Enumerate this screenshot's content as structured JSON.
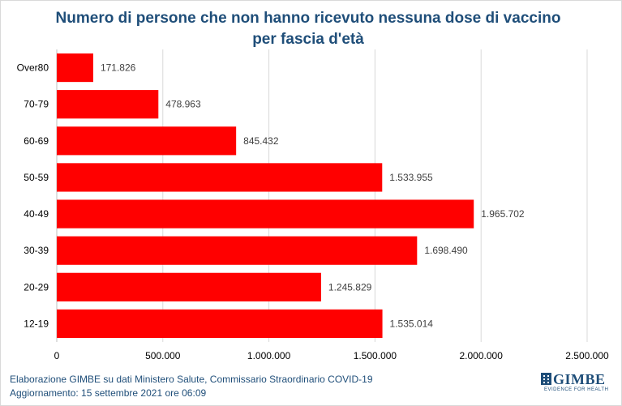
{
  "chart_data": {
    "type": "bar",
    "orientation": "horizontal",
    "title": "Numero di persone che non hanno ricevuto nessuna dose di vaccino per fascia d'età",
    "categories": [
      "Over80",
      "70-79",
      "60-69",
      "50-59",
      "40-49",
      "30-39",
      "20-29",
      "12-19"
    ],
    "values": [
      171826,
      478963,
      845432,
      1533955,
      1965702,
      1698490,
      1245829,
      1535014
    ],
    "value_labels": [
      "171.826",
      "478.963",
      "845.432",
      "1.533.955",
      "1.965.702",
      "1.698.490",
      "1.245.829",
      "1.535.014"
    ],
    "xlim": [
      0,
      2500000
    ],
    "xticks": [
      0,
      500000,
      1000000,
      1500000,
      2000000,
      2500000
    ],
    "xtick_labels": [
      "0",
      "500.000",
      "1.000.000",
      "1.500.000",
      "2.000.000",
      "2.500.000"
    ],
    "xlabel": "",
    "ylabel": "",
    "grid": "vertical",
    "legend": "none",
    "bar_color": "#ff0000",
    "grid_color": "#d9d9d9"
  },
  "footer": {
    "source": "Elaborazione GIMBE su dati Ministero Salute, Commissario Straordinario  COVID-19",
    "updated": "Aggiornamento:  15 settembre 2021 ore 06:09"
  },
  "logo": {
    "name": "GIMBE",
    "tagline": "EVIDENCE FOR HEALTH"
  },
  "colors": {
    "title": "#1f4e79",
    "text": "#404040"
  }
}
